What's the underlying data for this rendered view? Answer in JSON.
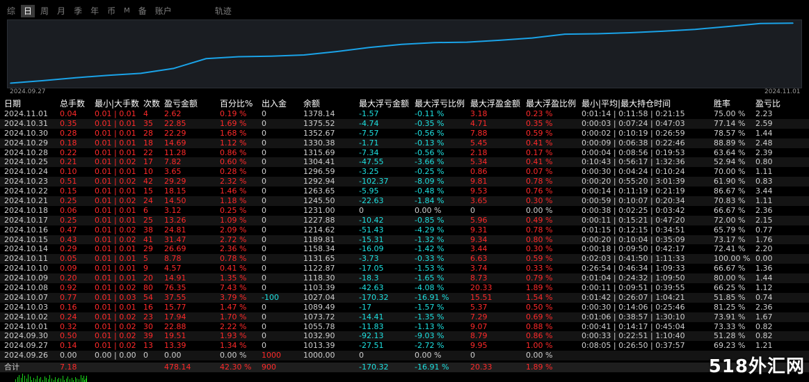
{
  "tabs": [
    {
      "label": "综",
      "active": false
    },
    {
      "label": "日",
      "active": true
    },
    {
      "label": "周",
      "active": false
    },
    {
      "label": "月",
      "active": false
    },
    {
      "label": "季",
      "active": false
    },
    {
      "label": "年",
      "active": false
    },
    {
      "label": "币",
      "active": false
    },
    {
      "label": "M",
      "active": false
    },
    {
      "label": "备",
      "active": false
    },
    {
      "label": "账户",
      "active": false
    },
    {
      "label": "轨迹",
      "active": false
    }
  ],
  "chart": {
    "x_start_label": "2024.09.27",
    "x_end_label": "2024.11.01",
    "line_color": "#1aa3e8"
  },
  "chart_data": {
    "type": "line",
    "x": [
      "2024.09.27",
      "2024.09.30",
      "2024.10.01",
      "2024.10.02",
      "2024.10.03",
      "2024.10.07",
      "2024.10.08",
      "2024.10.09",
      "2024.10.10",
      "2024.10.11",
      "2024.10.14",
      "2024.10.15",
      "2024.10.16",
      "2024.10.17",
      "2024.10.18",
      "2024.10.21",
      "2024.10.22",
      "2024.10.23",
      "2024.10.24",
      "2024.10.25",
      "2024.10.28",
      "2024.10.29",
      "2024.10.30",
      "2024.10.31",
      "2024.11.01"
    ],
    "series": [
      {
        "values": [
          13.39,
          32.9,
          55.78,
          73.72,
          89.49,
          127.04,
          203.39,
          218.3,
          222.87,
          231.65,
          258.34,
          289.81,
          314.62,
          327.88,
          331.0,
          345.5,
          363.65,
          392.94,
          396.59,
          404.41,
          415.69,
          430.38,
          452.67,
          475.52,
          478.14
        ]
      }
    ],
    "ylim": [
      0,
      480
    ]
  },
  "columns": [
    "日期",
    "总手数",
    "最小|大手数",
    "次数",
    "盈亏金额",
    "百分比%",
    "出入金",
    "余额",
    "最大浮亏金额",
    "最大浮亏比例",
    "最大浮盈金额",
    "最大浮盈比例",
    "最小|平均|最大持仓时间",
    "胜率",
    "盈亏比"
  ],
  "rows": [
    [
      "2024.11.01",
      "0.04",
      "0.01 | 0.01",
      "4",
      "2.62",
      "0.19 %",
      "0",
      "1378.14",
      "-1.57",
      "-0.11 %",
      "3.18",
      "0.23 %",
      "0:01:14 | 0:11:58 | 0:21:15",
      "75.00 %",
      "2.23"
    ],
    [
      "2024.10.31",
      "0.35",
      "0.01 | 0.01",
      "35",
      "22.85",
      "1.69 %",
      "0",
      "1375.52",
      "-4.74",
      "-0.35 %",
      "4.71",
      "0.35 %",
      "0:00:03 | 0:07:24 | 0:47:03",
      "77.14 %",
      "2.59"
    ],
    [
      "2024.10.30",
      "0.28",
      "0.01 | 0.01",
      "28",
      "22.29",
      "1.68 %",
      "0",
      "1352.67",
      "-7.57",
      "-0.56 %",
      "7.88",
      "0.59 %",
      "0:00:02 | 0:10:19 | 0:26:59",
      "78.57 %",
      "1.44"
    ],
    [
      "2024.10.29",
      "0.18",
      "0.01 | 0.01",
      "18",
      "14.69",
      "1.12 %",
      "0",
      "1330.38",
      "-1.71",
      "-0.13 %",
      "5.45",
      "0.41 %",
      "0:00:09 | 0:06:38 | 0:22:46",
      "88.89 %",
      "2.48"
    ],
    [
      "2024.10.28",
      "0.22",
      "0.01 | 0.01",
      "22",
      "11.28",
      "0.86 %",
      "0",
      "1315.69",
      "-7.34",
      "-0.56 %",
      "2.18",
      "0.17 %",
      "0:00:04 | 0:08:56 | 0:19:53",
      "63.64 %",
      "2.39"
    ],
    [
      "2024.10.25",
      "0.21",
      "0.01 | 0.02",
      "17",
      "7.82",
      "0.60 %",
      "0",
      "1304.41",
      "-47.55",
      "-3.66 %",
      "5.34",
      "0.41 %",
      "0:10:43 | 0:56:17 | 1:32:36",
      "52.94 %",
      "0.80"
    ],
    [
      "2024.10.24",
      "0.10",
      "0.01 | 0.01",
      "10",
      "3.65",
      "0.28 %",
      "0",
      "1296.59",
      "-3.25",
      "-0.25 %",
      "0.86",
      "0.07 %",
      "0:00:30 | 0:04:24 | 0:10:24",
      "70.00 %",
      "1.11"
    ],
    [
      "2024.10.23",
      "0.51",
      "0.01 | 0.02",
      "42",
      "29.29",
      "2.32 %",
      "0",
      "1292.94",
      "-102.37",
      "-8.09 %",
      "9.81",
      "0.78 %",
      "0:00:20 | 0:55:20 | 3:01:39",
      "61.90 %",
      "0.83"
    ],
    [
      "2024.10.22",
      "0.15",
      "0.01 | 0.01",
      "15",
      "18.15",
      "1.46 %",
      "0",
      "1263.65",
      "-5.95",
      "-0.48 %",
      "9.53",
      "0.76 %",
      "0:00:14 | 0:11:19 | 0:21:19",
      "86.67 %",
      "3.44"
    ],
    [
      "2024.10.21",
      "0.25",
      "0.01 | 0.02",
      "24",
      "14.50",
      "1.18 %",
      "0",
      "1245.50",
      "-22.63",
      "-1.84 %",
      "3.65",
      "0.30 %",
      "0:00:59 | 0:10:07 | 0:20:34",
      "70.83 %",
      "1.11"
    ],
    [
      "2024.10.18",
      "0.06",
      "0.01 | 0.01",
      "6",
      "3.12",
      "0.25 %",
      "0",
      "1231.00",
      "0",
      "0.00 %",
      "0",
      "0.00 %",
      "0:00:38 | 0:02:25 | 0:03:42",
      "66.67 %",
      "2.36"
    ],
    [
      "2024.10.17",
      "0.25",
      "0.01 | 0.01",
      "25",
      "13.26",
      "1.09 %",
      "0",
      "1227.88",
      "-10.42",
      "-0.85 %",
      "5.96",
      "0.49 %",
      "0:00:11 | 0:15:21 | 0:47:20",
      "72.00 %",
      "2.15"
    ],
    [
      "2024.10.16",
      "0.47",
      "0.01 | 0.02",
      "38",
      "24.81",
      "2.09 %",
      "0",
      "1214.62",
      "-51.43",
      "-4.29 %",
      "9.31",
      "0.78 %",
      "0:01:15 | 0:12:15 | 0:34:51",
      "65.79 %",
      "0.77"
    ],
    [
      "2024.10.15",
      "0.43",
      "0.01 | 0.02",
      "41",
      "31.47",
      "2.72 %",
      "0",
      "1189.81",
      "-15.31",
      "-1.32 %",
      "9.34",
      "0.80 %",
      "0:00:20 | 0:10:04 | 0:35:09",
      "73.17 %",
      "1.76"
    ],
    [
      "2024.10.14",
      "0.29",
      "0.01 | 0.01",
      "29",
      "26.69",
      "2.36 %",
      "0",
      "1158.34",
      "-16.09",
      "-1.42 %",
      "3.44",
      "0.30 %",
      "0:00:18 | 0:09:50 | 0:42:17",
      "72.41 %",
      "2.20"
    ],
    [
      "2024.10.11",
      "0.05",
      "0.01 | 0.01",
      "5",
      "8.78",
      "0.78 %",
      "0",
      "1131.65",
      "-3.73",
      "-0.33 %",
      "6.63",
      "0.59 %",
      "0:02:03 | 0:41:50 | 1:11:33",
      "100.00 %",
      "0.00"
    ],
    [
      "2024.10.10",
      "0.09",
      "0.01 | 0.01",
      "9",
      "4.57",
      "0.41 %",
      "0",
      "1122.87",
      "-17.05",
      "-1.53 %",
      "3.74",
      "0.33 %",
      "0:26:54 | 0:46:34 | 1:09:33",
      "66.67 %",
      "1.36"
    ],
    [
      "2024.10.09",
      "0.20",
      "0.01 | 0.01",
      "20",
      "14.91",
      "1.35 %",
      "0",
      "1118.30",
      "-18.3",
      "-1.65 %",
      "8.73",
      "0.79 %",
      "0:01:04 | 0:24:32 | 1:09:50",
      "80.00 %",
      "1.44"
    ],
    [
      "2024.10.08",
      "0.92",
      "0.01 | 0.02",
      "80",
      "76.35",
      "7.43 %",
      "0",
      "1103.39",
      "-42.63",
      "-4.08 %",
      "20.33",
      "1.89 %",
      "0:00:11 | 0:09:51 | 0:39:55",
      "66.25 %",
      "1.12"
    ],
    [
      "2024.10.07",
      "0.77",
      "0.01 | 0.03",
      "54",
      "37.55",
      "3.79 %",
      "-100",
      "1027.04",
      "-170.32",
      "-16.91 %",
      "15.51",
      "1.54 %",
      "0:01:42 | 0:26:07 | 1:04:21",
      "51.85 %",
      "0.74"
    ],
    [
      "2024.10.03",
      "0.16",
      "0.01 | 0.01",
      "16",
      "15.77",
      "1.47 %",
      "0",
      "1089.49",
      "-17",
      "-1.57 %",
      "5.37",
      "0.50 %",
      "0:00:30 | 0:14:06 | 0:25:46",
      "81.25 %",
      "2.36"
    ],
    [
      "2024.10.02",
      "0.24",
      "0.01 | 0.02",
      "23",
      "17.94",
      "1.70 %",
      "0",
      "1073.72",
      "-14.41",
      "-1.35 %",
      "7.29",
      "0.69 %",
      "0:01:06 | 0:38:57 | 1:30:10",
      "73.91 %",
      "1.67"
    ],
    [
      "2024.10.01",
      "0.32",
      "0.01 | 0.02",
      "30",
      "22.88",
      "2.22 %",
      "0",
      "1055.78",
      "-11.83",
      "-1.13 %",
      "9.07",
      "0.88 %",
      "0:00:41 | 0:14:17 | 0:45:04",
      "73.33 %",
      "0.82"
    ],
    [
      "2024.09.30",
      "0.50",
      "0.01 | 0.02",
      "39",
      "19.51",
      "1.93 %",
      "0",
      "1032.90",
      "-92.13",
      "-9.03 %",
      "8.79",
      "0.86 %",
      "0:00:33 | 0:22:51 | 1:10:40",
      "51.28 %",
      "0.82"
    ],
    [
      "2024.09.27",
      "0.14",
      "0.01 | 0.02",
      "13",
      "13.39",
      "1.34 %",
      "0",
      "1013.39",
      "-27.51",
      "-2.72 %",
      "9.95",
      "1.00 %",
      "0:08:05 | 0:26:50 | 0:37:57",
      "69.23 %",
      "1.21"
    ],
    [
      "2024.09.26",
      "0.00",
      "0.00 | 0.00",
      "0",
      "0.00",
      "0.00 %",
      "1000",
      "1000.00",
      "0",
      "0.00 %",
      "0",
      "0.00 %",
      "",
      "",
      ""
    ]
  ],
  "total": {
    "label": "合计",
    "total_lots": "7.18",
    "pnl": "478.14",
    "pct": "42.30 %",
    "deposit": "900",
    "max_float_loss": "-170.32",
    "max_float_loss_pct": "-16.91 %",
    "max_float_profit": "20.33",
    "max_float_profit_pct": "1.89 %"
  },
  "watermark": "518外汇网"
}
